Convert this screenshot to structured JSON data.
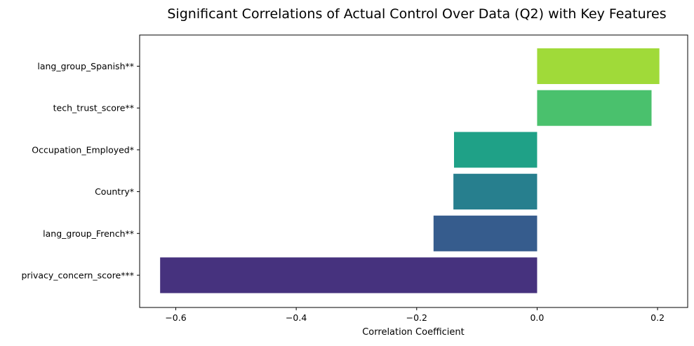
{
  "chart_data": {
    "type": "bar",
    "orientation": "horizontal",
    "title": "Significant Correlations of Actual Control Over Data (Q2) with Key Features",
    "xlabel": "Correlation Coefficient",
    "ylabel": "",
    "xlim": [
      -0.66,
      0.25
    ],
    "xticks": [
      -0.6,
      -0.4,
      -0.2,
      0.0,
      0.2
    ],
    "xtick_labels": [
      "−0.6",
      "−0.4",
      "−0.2",
      "0.0",
      "0.2"
    ],
    "grid": false,
    "legend": "none",
    "categories": [
      "lang_group_Spanish**",
      "tech_trust_score**",
      "Occupation_Employed*",
      "Country*",
      "lang_group_French**",
      "privacy_concern_score***"
    ],
    "values": [
      0.203,
      0.19,
      -0.138,
      -0.139,
      -0.172,
      -0.626
    ],
    "colors": [
      "#a0da39",
      "#4ac16d",
      "#1fa187",
      "#277f8e",
      "#365c8d",
      "#46327e"
    ]
  }
}
